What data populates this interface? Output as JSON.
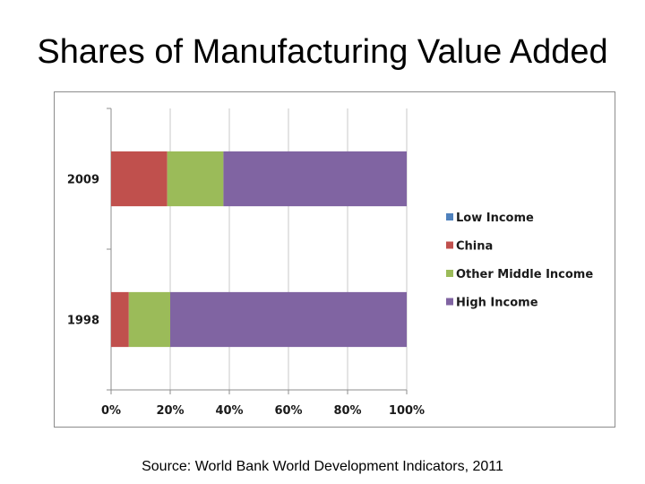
{
  "slide": {
    "title": "Shares of Manufacturing Value Added",
    "source": "Source: World Bank World Development Indicators, 2011"
  },
  "chart_data": {
    "type": "bar",
    "orientation": "horizontal",
    "stacked": true,
    "categories": [
      "2009",
      "1998"
    ],
    "series": [
      {
        "name": "Low Income",
        "color": "#4f81bd",
        "values": [
          0,
          0
        ]
      },
      {
        "name": "China",
        "color": "#c0504d",
        "values": [
          19,
          6
        ]
      },
      {
        "name": "Other Middle Income",
        "color": "#9bbb59",
        "values": [
          19,
          14
        ]
      },
      {
        "name": "High Income",
        "color": "#8064a2",
        "values": [
          62,
          80
        ]
      }
    ],
    "xlim": [
      0,
      100
    ],
    "xticks": [
      "0%",
      "20%",
      "40%",
      "60%",
      "80%",
      "100%"
    ],
    "grid": true,
    "legend": "right",
    "title": "",
    "xlabel": "",
    "ylabel": ""
  }
}
